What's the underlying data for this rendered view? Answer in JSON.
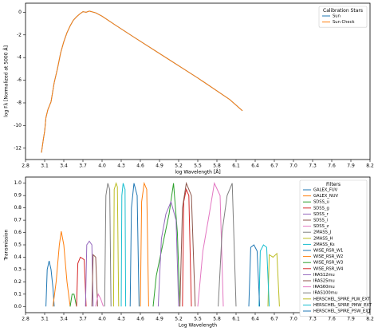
{
  "chart_data": [
    {
      "type": "line",
      "xlabel": "log Wavelength [Å]",
      "ylabel": "log Fλ [Normalized at 5000 Å]",
      "xlim": [
        2.8,
        8.2
      ],
      "ylim": [
        -13,
        0.8
      ],
      "xticks": [
        2.8,
        3.1,
        3.4,
        3.7,
        {
          "value": 4.0,
          "label": "4.0"
        },
        4.3,
        4.6,
        4.9,
        5.2,
        5.5,
        5.8,
        6.1,
        6.4,
        6.7,
        {
          "value": 7.0,
          "label": "7.0"
        },
        7.3,
        7.6,
        7.9,
        8.2
      ],
      "yticks": [
        -12,
        -10,
        -8,
        -6,
        -4,
        -2,
        0
      ],
      "legend": "upper right",
      "legend_title": "Calibration Stars",
      "series": [
        {
          "name": "Sun",
          "color": "#1f77b4",
          "x": [
            3.05,
            3.08,
            3.1,
            3.12,
            3.15,
            3.2,
            3.25,
            3.3,
            3.35,
            3.4,
            3.45,
            3.5,
            3.55,
            3.6,
            3.65,
            3.7,
            3.75,
            3.8,
            3.9,
            4.0,
            4.2,
            4.5,
            5.0,
            5.5,
            6.0,
            6.2
          ],
          "values": [
            -12.4,
            -11.2,
            -10.5,
            -9.3,
            -8.6,
            -7.9,
            -6.2,
            -5.0,
            -3.6,
            -2.6,
            -1.8,
            -1.2,
            -0.7,
            -0.4,
            -0.15,
            0.05,
            0.0,
            0.1,
            -0.05,
            -0.35,
            -1.1,
            -2.2,
            -4.0,
            -5.8,
            -7.7,
            -8.7
          ]
        },
        {
          "name": "Sun Check",
          "color": "#ff7f0e",
          "x": [
            3.05,
            3.08,
            3.1,
            3.12,
            3.15,
            3.2,
            3.25,
            3.3,
            3.35,
            3.4,
            3.45,
            3.5,
            3.55,
            3.6,
            3.65,
            3.7,
            3.75,
            3.8,
            3.9,
            4.0,
            4.2,
            4.5,
            5.0,
            5.5,
            6.0,
            6.2
          ],
          "values": [
            -12.4,
            -11.2,
            -10.5,
            -9.3,
            -8.6,
            -7.9,
            -6.2,
            -5.0,
            -3.6,
            -2.6,
            -1.8,
            -1.2,
            -0.7,
            -0.4,
            -0.15,
            0.05,
            0.0,
            0.1,
            -0.05,
            -0.35,
            -1.1,
            -2.2,
            -4.0,
            -5.8,
            -7.7,
            -8.7
          ]
        }
      ]
    },
    {
      "type": "line",
      "xlabel": "Log Wavelength",
      "ylabel": "Transmission",
      "xlim": [
        2.8,
        8.2
      ],
      "ylim": [
        -0.05,
        1.05
      ],
      "xticks": [
        2.8,
        3.1,
        3.4,
        3.7,
        {
          "value": 4.0,
          "label": "4.0"
        },
        4.3,
        4.6,
        4.9,
        5.2,
        5.5,
        5.8,
        6.1,
        6.4,
        6.7,
        {
          "value": 7.0,
          "label": "7.0"
        },
        7.3,
        7.6,
        7.9,
        8.2
      ],
      "yticks": [
        {
          "value": 0,
          "label": "0.0"
        },
        0.1,
        0.2,
        0.3,
        0.4,
        0.5,
        0.6,
        0.7,
        0.8,
        0.9,
        {
          "value": 1,
          "label": "1.0"
        }
      ],
      "legend": "upper right",
      "legend_title": "Filters",
      "series": [
        {
          "name": "GALEX_FUV",
          "color": "#1f77b4",
          "x": [
            3.12,
            3.14,
            3.17,
            3.2,
            3.23,
            3.25
          ],
          "values": [
            0,
            0.3,
            0.37,
            0.3,
            0.15,
            0
          ]
        },
        {
          "name": "GALEX_NUV",
          "color": "#ff7f0e",
          "x": [
            3.23,
            3.28,
            3.33,
            3.36,
            3.4,
            3.45,
            3.5
          ],
          "values": [
            0,
            0.2,
            0.5,
            0.61,
            0.5,
            0.2,
            0
          ]
        },
        {
          "name": "SDSS_u",
          "color": "#2ca02c",
          "x": [
            3.5,
            3.53,
            3.56,
            3.6
          ],
          "values": [
            0,
            0.1,
            0.1,
            0
          ]
        },
        {
          "name": "SDSS_g",
          "color": "#d62728",
          "x": [
            3.6,
            3.62,
            3.66,
            3.72,
            3.75
          ],
          "values": [
            0,
            0.35,
            0.4,
            0.38,
            0
          ]
        },
        {
          "name": "SDSS_r",
          "color": "#9467bd",
          "x": [
            3.74,
            3.76,
            3.8,
            3.84,
            3.86
          ],
          "values": [
            0,
            0.5,
            0.53,
            0.5,
            0
          ]
        },
        {
          "name": "SDSS_i",
          "color": "#8c564b",
          "x": [
            3.84,
            3.86,
            3.9,
            3.93
          ],
          "values": [
            0,
            0.42,
            0.4,
            0
          ]
        },
        {
          "name": "SDSS_z",
          "color": "#e377c2",
          "x": [
            3.9,
            3.94,
            3.98,
            4.02
          ],
          "values": [
            0,
            0.1,
            0.06,
            0
          ]
        },
        {
          "name": "2MASS_J",
          "color": "#7f7f7f",
          "x": [
            4.04,
            4.06,
            4.09,
            4.12,
            4.14
          ],
          "values": [
            0,
            0.9,
            1,
            0.95,
            0
          ]
        },
        {
          "name": "2MASS_H",
          "color": "#bcbd22",
          "x": [
            4.18,
            4.19,
            4.22,
            4.24,
            4.26
          ],
          "values": [
            0,
            0.95,
            1,
            0.97,
            0
          ]
        },
        {
          "name": "2MASS_Ks",
          "color": "#17becf",
          "x": [
            4.3,
            4.31,
            4.33,
            4.36,
            4.37
          ],
          "values": [
            0,
            0.9,
            1,
            0.95,
            0
          ]
        },
        {
          "name": "WISE_RSR_W1",
          "color": "#1f77b4",
          "x": [
            4.44,
            4.46,
            4.5,
            4.55,
            4.58
          ],
          "values": [
            0,
            0.8,
            1,
            0.9,
            0
          ]
        },
        {
          "name": "WISE_RSR_W2",
          "color": "#ff7f0e",
          "x": [
            4.6,
            4.62,
            4.66,
            4.7,
            4.73
          ],
          "values": [
            0,
            0.85,
            1,
            0.95,
            0
          ]
        },
        {
          "name": "WISE_RSR_W3",
          "color": "#2ca02c",
          "x": [
            4.8,
            4.85,
            4.95,
            5.05,
            5.12,
            5.18,
            5.22
          ],
          "values": [
            0,
            0.25,
            0.5,
            0.75,
            1,
            0.6,
            0
          ]
        },
        {
          "name": "WISE_RSR_W4",
          "color": "#d62728",
          "x": [
            5.26,
            5.28,
            5.32,
            5.36,
            5.4
          ],
          "values": [
            0,
            0.85,
            0.95,
            0.9,
            0
          ]
        },
        {
          "name": "IRAS12mu",
          "color": "#9467bd",
          "x": [
            4.88,
            4.93,
            5.0,
            5.08,
            5.16,
            5.2
          ],
          "values": [
            0,
            0.55,
            0.75,
            0.85,
            0.7,
            0
          ]
        },
        {
          "name": "IRAS25mu",
          "color": "#8c564b",
          "x": [
            5.22,
            5.26,
            5.32,
            5.4,
            5.46
          ],
          "values": [
            0,
            0.8,
            1,
            0.9,
            0
          ]
        },
        {
          "name": "IRAS60mu",
          "color": "#e377c2",
          "x": [
            5.5,
            5.58,
            5.68,
            5.76,
            5.85,
            5.9
          ],
          "values": [
            0,
            0.45,
            0.75,
            1,
            0.9,
            0
          ]
        },
        {
          "name": "IRAS100mu",
          "color": "#7f7f7f",
          "x": [
            5.82,
            5.88,
            5.96,
            6.04,
            6.1
          ],
          "values": [
            0,
            0.6,
            0.9,
            1,
            0
          ]
        },
        {
          "name": "HERSCHEL_SPIRE_PLW_EXT",
          "color": "#bcbd22",
          "x": [
            6.6,
            6.62,
            6.68,
            6.74,
            6.78
          ],
          "values": [
            0,
            0.42,
            0.4,
            0.43,
            0
          ]
        },
        {
          "name": "HERSCHEL_SPIRE_PMW_EXT",
          "color": "#17becf",
          "x": [
            6.46,
            6.48,
            6.53,
            6.58,
            6.62
          ],
          "values": [
            0,
            0.45,
            0.5,
            0.48,
            0
          ]
        },
        {
          "name": "HERSCHEL_SPIRE_PSW_EXT",
          "color": "#1f77b4",
          "x": [
            6.3,
            6.33,
            6.38,
            6.43,
            6.47
          ],
          "values": [
            0,
            0.48,
            0.5,
            0.45,
            0
          ]
        }
      ]
    }
  ]
}
